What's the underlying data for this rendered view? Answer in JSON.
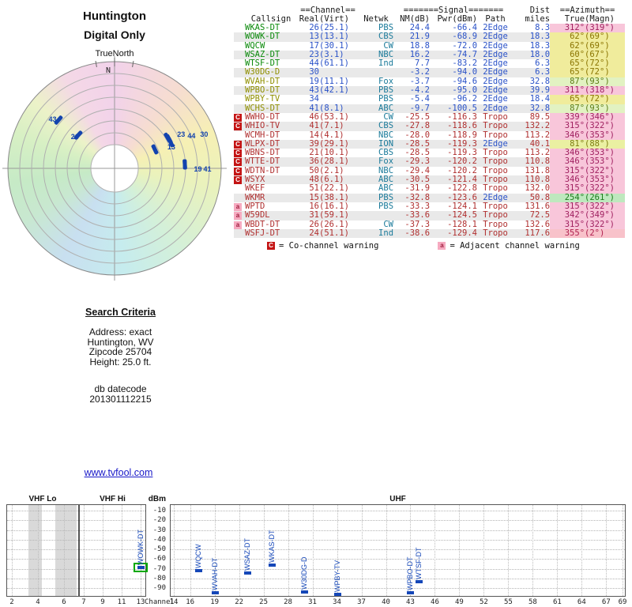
{
  "polar_header": {
    "title": "Huntington",
    "subtitle": "Digital Only",
    "true_north": "TrueNorth",
    "north": "N"
  },
  "table": {
    "group_channel": "==Channel==",
    "group_signal": "=======Signal=======",
    "group_dist": "Dist",
    "group_azimuth": "==Azimuth==",
    "col_callsign": "Callsign",
    "col_real": "Real",
    "col_virt": "(Virt)",
    "col_netwk": "Netwk",
    "col_nm": "NM(dB)",
    "col_pwr": "Pwr(dBm)",
    "col_path": "Path",
    "col_miles": "miles",
    "col_true": "True",
    "col_magn": "(Magn)",
    "rows": [
      {
        "callsign": "WKAS-DT",
        "real": "26",
        "virt": "(25.1)",
        "netwk": "PBS",
        "nm": "24.4",
        "pwr": "-66.4",
        "path": "2Edge",
        "miles": "8.3",
        "az_true": "312°",
        "az_magn": "(319°)",
        "strength": "strong",
        "warn": "",
        "az_bg": "#f8c6da",
        "az_fg": "#a02060"
      },
      {
        "callsign": "WOWK-DT",
        "real": "13",
        "virt": "(13.1)",
        "netwk": "CBS",
        "nm": "21.9",
        "pwr": "-68.9",
        "path": "2Edge",
        "miles": "18.3",
        "az_true": "62°",
        "az_magn": "(69°)",
        "strength": "strong",
        "warn": "",
        "az_bg": "#f0ec9c",
        "az_fg": "#8a7400"
      },
      {
        "callsign": "WQCW",
        "real": "17",
        "virt": "(30.1)",
        "netwk": "CW",
        "nm": "18.8",
        "pwr": "-72.0",
        "path": "2Edge",
        "miles": "18.3",
        "az_true": "62°",
        "az_magn": "(69°)",
        "strength": "strong",
        "warn": "",
        "az_bg": "#f0ec9c",
        "az_fg": "#8a7400"
      },
      {
        "callsign": "WSAZ-DT",
        "real": "23",
        "virt": "(3.1)",
        "netwk": "NBC",
        "nm": "16.2",
        "pwr": "-74.7",
        "path": "2Edge",
        "miles": "18.0",
        "az_true": "60°",
        "az_magn": "(67°)",
        "strength": "strong",
        "warn": "",
        "az_bg": "#f0ec9c",
        "az_fg": "#8a7400"
      },
      {
        "callsign": "WTSF-DT",
        "real": "44",
        "virt": "(61.1)",
        "netwk": "Ind",
        "nm": "7.7",
        "pwr": "-83.2",
        "path": "2Edge",
        "miles": "6.3",
        "az_true": "65°",
        "az_magn": "(72°)",
        "strength": "strong",
        "warn": "",
        "az_bg": "#f0ec9c",
        "az_fg": "#8a7400"
      },
      {
        "callsign": "W30DG-D",
        "real": "30",
        "virt": "",
        "netwk": "",
        "nm": "-3.2",
        "pwr": "-94.0",
        "path": "2Edge",
        "miles": "6.3",
        "az_true": "65°",
        "az_magn": "(72°)",
        "strength": "mid",
        "warn": "",
        "az_bg": "#f0ec9c",
        "az_fg": "#8a7400"
      },
      {
        "callsign": "WVAH-DT",
        "real": "19",
        "virt": "(11.1)",
        "netwk": "Fox",
        "nm": "-3.7",
        "pwr": "-94.6",
        "path": "2Edge",
        "miles": "32.8",
        "az_true": "87°",
        "az_magn": "(93°)",
        "strength": "mid",
        "warn": "",
        "az_bg": "#e2f2c2",
        "az_fg": "#5c7c14"
      },
      {
        "callsign": "WPBO-DT",
        "real": "43",
        "virt": "(42.1)",
        "netwk": "PBS",
        "nm": "-4.2",
        "pwr": "-95.0",
        "path": "2Edge",
        "miles": "39.9",
        "az_true": "311°",
        "az_magn": "(318°)",
        "strength": "mid",
        "warn": "",
        "az_bg": "#f8c6da",
        "az_fg": "#a02060"
      },
      {
        "callsign": "WPBY-TV",
        "real": "34",
        "virt": "",
        "netwk": "PBS",
        "nm": "-5.4",
        "pwr": "-96.2",
        "path": "2Edge",
        "miles": "18.4",
        "az_true": "65°",
        "az_magn": "(72°)",
        "strength": "mid",
        "warn": "",
        "az_bg": "#f0ec9c",
        "az_fg": "#8a7400"
      },
      {
        "callsign": "WCHS-DT",
        "real": "41",
        "virt": "(8.1)",
        "netwk": "ABC",
        "nm": "-9.7",
        "pwr": "-100.5",
        "path": "2Edge",
        "miles": "32.8",
        "az_true": "87°",
        "az_magn": "(93°)",
        "strength": "mid",
        "warn": "",
        "az_bg": "#e2f2c2",
        "az_fg": "#5c7c14"
      },
      {
        "callsign": "WWHO-DT",
        "real": "46",
        "virt": "(53.1)",
        "netwk": "CW",
        "nm": "-25.5",
        "pwr": "-116.3",
        "path": "Tropo",
        "miles": "89.5",
        "az_true": "339°",
        "az_magn": "(346°)",
        "strength": "weak",
        "warn": "C",
        "az_bg": "#f8c6da",
        "az_fg": "#a02060"
      },
      {
        "callsign": "WHIO-TV",
        "real": "41",
        "virt": "(7.1)",
        "netwk": "CBS",
        "nm": "-27.8",
        "pwr": "-118.6",
        "path": "Tropo",
        "miles": "132.2",
        "az_true": "315°",
        "az_magn": "(322°)",
        "strength": "weak",
        "warn": "C",
        "az_bg": "#f8c6da",
        "az_fg": "#a02060"
      },
      {
        "callsign": "WCMH-DT",
        "real": "14",
        "virt": "(4.1)",
        "netwk": "NBC",
        "nm": "-28.0",
        "pwr": "-118.9",
        "path": "Tropo",
        "miles": "113.2",
        "az_true": "346°",
        "az_magn": "(353°)",
        "strength": "weak",
        "warn": "",
        "az_bg": "#f8c6da",
        "az_fg": "#a02060"
      },
      {
        "callsign": "WLPX-DT",
        "real": "39",
        "virt": "(29.1)",
        "netwk": "ION",
        "nm": "-28.5",
        "pwr": "-119.3",
        "path": "2Edge",
        "miles": "40.1",
        "az_true": "81°",
        "az_magn": "(88°)",
        "strength": "weak",
        "warn": "C",
        "az_bg": "#eaf0a2",
        "az_fg": "#7c7c10"
      },
      {
        "callsign": "WBNS-DT",
        "real": "21",
        "virt": "(10.1)",
        "netwk": "CBS",
        "nm": "-28.5",
        "pwr": "-119.3",
        "path": "Tropo",
        "miles": "113.2",
        "az_true": "346°",
        "az_magn": "(353°)",
        "strength": "weak",
        "warn": "C",
        "az_bg": "#f8c6da",
        "az_fg": "#a02060"
      },
      {
        "callsign": "WTTE-DT",
        "real": "36",
        "virt": "(28.1)",
        "netwk": "Fox",
        "nm": "-29.3",
        "pwr": "-120.2",
        "path": "Tropo",
        "miles": "110.8",
        "az_true": "346°",
        "az_magn": "(353°)",
        "strength": "weak",
        "warn": "C",
        "az_bg": "#f8c6da",
        "az_fg": "#a02060"
      },
      {
        "callsign": "WDTN-DT",
        "real": "50",
        "virt": "(2.1)",
        "netwk": "NBC",
        "nm": "-29.4",
        "pwr": "-120.2",
        "path": "Tropo",
        "miles": "131.8",
        "az_true": "315°",
        "az_magn": "(322°)",
        "strength": "weak",
        "warn": "C",
        "az_bg": "#f8c6da",
        "az_fg": "#a02060"
      },
      {
        "callsign": "WSYX",
        "real": "48",
        "virt": "(6.1)",
        "netwk": "ABC",
        "nm": "-30.5",
        "pwr": "-121.4",
        "path": "Tropo",
        "miles": "110.8",
        "az_true": "346°",
        "az_magn": "(353°)",
        "strength": "weak",
        "warn": "C",
        "az_bg": "#f8c6da",
        "az_fg": "#a02060"
      },
      {
        "callsign": "WKEF",
        "real": "51",
        "virt": "(22.1)",
        "netwk": "ABC",
        "nm": "-31.9",
        "pwr": "-122.8",
        "path": "Tropo",
        "miles": "132.0",
        "az_true": "315°",
        "az_magn": "(322°)",
        "strength": "weak",
        "warn": "",
        "az_bg": "#f8c6da",
        "az_fg": "#a02060"
      },
      {
        "callsign": "WKMR",
        "real": "15",
        "virt": "(38.1)",
        "netwk": "PBS",
        "nm": "-32.8",
        "pwr": "-123.6",
        "path": "2Edge",
        "miles": "50.8",
        "az_true": "254°",
        "az_magn": "(261°)",
        "strength": "weak",
        "warn": "",
        "az_bg": "#bee8be",
        "az_fg": "#1c7c1c"
      },
      {
        "callsign": "WPTD",
        "real": "16",
        "virt": "(16.1)",
        "netwk": "PBS",
        "nm": "-33.3",
        "pwr": "-124.1",
        "path": "Tropo",
        "miles": "131.6",
        "az_true": "315°",
        "az_magn": "(322°)",
        "strength": "weak",
        "warn": "a",
        "az_bg": "#f8c6da",
        "az_fg": "#a02060"
      },
      {
        "callsign": "W59DL",
        "real": "31",
        "virt": "(59.1)",
        "netwk": "",
        "nm": "-33.6",
        "pwr": "-124.5",
        "path": "Tropo",
        "miles": "72.5",
        "az_true": "342°",
        "az_magn": "(349°)",
        "strength": "weak",
        "warn": "a",
        "az_bg": "#f8c6da",
        "az_fg": "#a02060"
      },
      {
        "callsign": "WBDT-DT",
        "real": "26",
        "virt": "(26.1)",
        "netwk": "CW",
        "nm": "-37.3",
        "pwr": "-128.1",
        "path": "Tropo",
        "miles": "132.6",
        "az_true": "315°",
        "az_magn": "(322°)",
        "strength": "weak",
        "warn": "a",
        "az_bg": "#f8c6da",
        "az_fg": "#a02060"
      },
      {
        "callsign": "WSFJ-DT",
        "real": "24",
        "virt": "(51.1)",
        "netwk": "Ind",
        "nm": "-38.6",
        "pwr": "-129.4",
        "path": "Tropo",
        "miles": "117.6",
        "az_true": "355°",
        "az_magn": "(2°)",
        "strength": "weak",
        "warn": "",
        "az_bg": "#f8c2ca",
        "az_fg": "#b02050"
      }
    ],
    "legend": {
      "c_symbol": "C",
      "c_text": "= Co-channel warning",
      "a_symbol": "a",
      "a_text": "= Adjacent channel warning"
    }
  },
  "search": {
    "title": "Search Criteria",
    "lines": [
      "Address: exact",
      "Huntington, WV",
      "Zipcode 25704",
      "Height: 25.0 ft."
    ],
    "datecode_label": "db datecode",
    "datecode": "201301112215"
  },
  "site_link": "www.tvfool.com",
  "chart_data": [
    {
      "type": "scatter",
      "name": "polar-coverage",
      "title": "Huntington Digital Only",
      "orientation_label": "TrueNorth",
      "radial_unit": "miles",
      "stations": [
        {
          "callsign": "WPBO-DT",
          "channel": 43,
          "az_true": 311,
          "dist_mi": 39.9,
          "plot_label": "43"
        },
        {
          "callsign": "WKAS-DT",
          "channel": 26,
          "az_true": 312,
          "dist_mi": 8.3,
          "plot_label": "26"
        },
        {
          "callsign": "WOWK-DT",
          "channel": 13,
          "az_true": 62,
          "dist_mi": 18.3,
          "plot_label": "13"
        },
        {
          "callsign": "WQCW",
          "channel": 17,
          "az_true": 62,
          "dist_mi": 18.3,
          "plot_label": ""
        },
        {
          "callsign": "WSAZ-DT",
          "channel": 23,
          "az_true": 60,
          "dist_mi": 18.0,
          "plot_label": "23"
        },
        {
          "callsign": "WTSF-DT",
          "channel": 44,
          "az_true": 65,
          "dist_mi": 6.3,
          "plot_label": "44"
        },
        {
          "callsign": "W30DG-D",
          "channel": 30,
          "az_true": 65,
          "dist_mi": 6.3,
          "plot_label": "30"
        },
        {
          "callsign": "WPBY-TV",
          "channel": 34,
          "az_true": 65,
          "dist_mi": 18.4,
          "plot_label": ""
        },
        {
          "callsign": "WVAH-DT",
          "channel": 19,
          "az_true": 87,
          "dist_mi": 32.8,
          "plot_label": "19"
        },
        {
          "callsign": "WCHS-DT",
          "channel": 41,
          "az_true": 87,
          "dist_mi": 32.8,
          "plot_label": "41"
        }
      ]
    },
    {
      "type": "bar",
      "name": "signal-spectrum",
      "ylabel": "dBm",
      "xlabel": "Channel",
      "band_labels": [
        "VHF Lo",
        "VHF Hi",
        "UHF"
      ],
      "dbm_ticks": [
        -10,
        -20,
        -30,
        -40,
        -50,
        -60,
        -70,
        -80,
        -90
      ],
      "vhf_lo_ticks": [
        2,
        4,
        6
      ],
      "vhf_hi_ticks": [
        7,
        9,
        11,
        13
      ],
      "uhf_ticks": [
        14,
        16,
        19,
        22,
        25,
        28,
        31,
        34,
        37,
        40,
        43,
        46,
        49,
        52,
        55,
        58,
        61,
        64,
        67,
        69
      ],
      "highlight_callsign": "WOWK-DT",
      "stations": [
        {
          "callsign": "WOWK-DT",
          "channel": 13,
          "pwr_dbm": -68.9
        },
        {
          "callsign": "WQCW",
          "channel": 17,
          "pwr_dbm": -72.0
        },
        {
          "callsign": "WVAH-DT",
          "channel": 19,
          "pwr_dbm": -94.6
        },
        {
          "callsign": "WSAZ-DT",
          "channel": 23,
          "pwr_dbm": -74.7
        },
        {
          "callsign": "WKAS-DT",
          "channel": 26,
          "pwr_dbm": -66.4
        },
        {
          "callsign": "W30DG-D",
          "channel": 30,
          "pwr_dbm": -94.0
        },
        {
          "callsign": "WPBY-TV",
          "channel": 34,
          "pwr_dbm": -96.2
        },
        {
          "callsign": "WPBO-DT",
          "channel": 43,
          "pwr_dbm": -95.0
        },
        {
          "callsign": "WTSF-DT",
          "channel": 44,
          "pwr_dbm": -83.2
        }
      ]
    }
  ]
}
